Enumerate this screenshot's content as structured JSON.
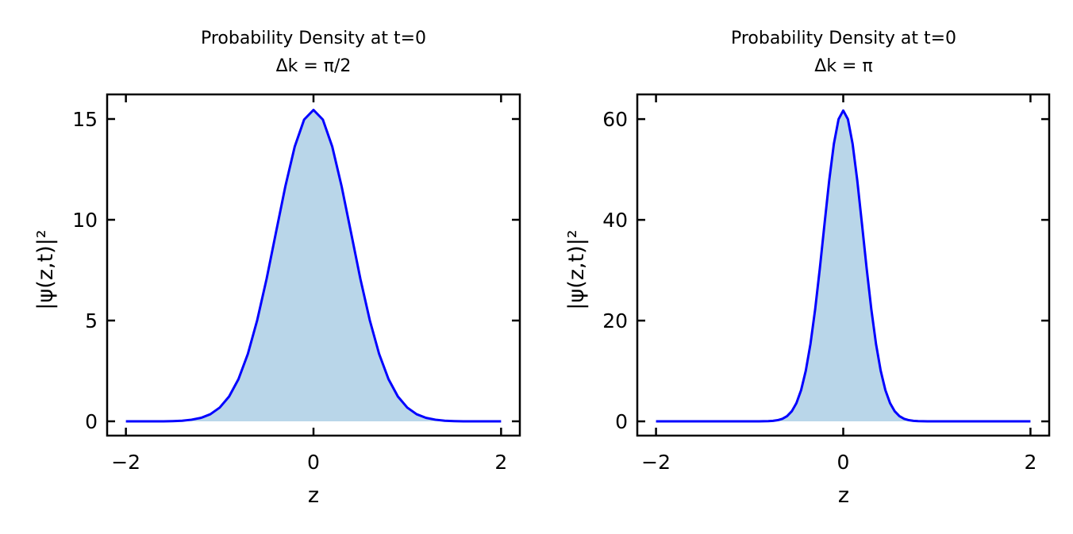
{
  "colors": {
    "line": "#0000ff",
    "fill": "#b9d6e9",
    "axis": "#000000"
  },
  "chart_data": [
    {
      "type": "area",
      "title": "Probability Density at t=0",
      "subtitle": "Δk = π/2",
      "xlabel": "z",
      "ylabel": "|ψ(z,t)|²",
      "xlim": [
        -2.2,
        2.2
      ],
      "ylim": [
        -0.71,
        16.22
      ],
      "xticks": [
        -2,
        0,
        2
      ],
      "xtick_labels": [
        "−2",
        "0",
        "2"
      ],
      "yticks": [
        0,
        5,
        10,
        15
      ],
      "ytick_labels": [
        "0",
        "5",
        "10",
        "15"
      ],
      "grid": false,
      "x": [
        -2.0,
        -1.9,
        -1.8,
        -1.7,
        -1.6,
        -1.5,
        -1.4,
        -1.3,
        -1.2,
        -1.1,
        -1.0,
        -0.9,
        -0.8,
        -0.7,
        -0.6,
        -0.5,
        -0.4,
        -0.3,
        -0.2,
        -0.1,
        0.0,
        0.1,
        0.2,
        0.3,
        0.4,
        0.5,
        0.6,
        0.7,
        0.8,
        0.9,
        1.0,
        1.1,
        1.2,
        1.3,
        1.4,
        1.5,
        1.6,
        1.7,
        1.8,
        1.9,
        2.0
      ],
      "y": [
        0,
        0,
        0,
        0,
        0,
        0.01,
        0.03,
        0.08,
        0.17,
        0.35,
        0.68,
        1.23,
        2.09,
        3.34,
        5.02,
        7.07,
        9.37,
        11.66,
        13.63,
        14.97,
        15.45,
        14.97,
        13.63,
        11.66,
        9.37,
        7.07,
        5.02,
        3.34,
        2.09,
        1.23,
        0.68,
        0.35,
        0.17,
        0.08,
        0.03,
        0.01,
        0,
        0,
        0,
        0,
        0
      ]
    },
    {
      "type": "area",
      "title": "Probability Density at t=0",
      "subtitle": "Δk = π",
      "xlabel": "z",
      "ylabel": "|ψ(z,t)|²",
      "xlim": [
        -2.2,
        2.2
      ],
      "ylim": [
        -2.83,
        64.9
      ],
      "xticks": [
        -2,
        0,
        2
      ],
      "xtick_labels": [
        "−2",
        "0",
        "2"
      ],
      "yticks": [
        0,
        20,
        40,
        60
      ],
      "ytick_labels": [
        "0",
        "20",
        "40",
        "60"
      ],
      "grid": false,
      "x": [
        -2.0,
        -1.5,
        -1.0,
        -0.95,
        -0.9,
        -0.85,
        -0.8,
        -0.75,
        -0.7,
        -0.65,
        -0.6,
        -0.55,
        -0.5,
        -0.45,
        -0.4,
        -0.35,
        -0.3,
        -0.25,
        -0.2,
        -0.15,
        -0.1,
        -0.05,
        0.0,
        0.05,
        0.1,
        0.15,
        0.2,
        0.25,
        0.3,
        0.35,
        0.4,
        0.45,
        0.5,
        0.55,
        0.6,
        0.65,
        0.7,
        0.75,
        0.8,
        0.85,
        0.9,
        0.95,
        1.0,
        1.5,
        2.0
      ],
      "y": [
        0,
        0,
        0,
        0,
        0.01,
        0.02,
        0.04,
        0.1,
        0.24,
        0.51,
        1.04,
        2.0,
        3.62,
        6.21,
        10.06,
        15.39,
        22.24,
        30.38,
        39.2,
        47.81,
        55.08,
        59.98,
        61.7,
        59.98,
        55.08,
        47.81,
        39.2,
        30.38,
        22.24,
        15.39,
        10.06,
        6.21,
        3.62,
        2.0,
        1.04,
        0.51,
        0.24,
        0.1,
        0.04,
        0.02,
        0.01,
        0,
        0,
        0,
        0
      ]
    }
  ]
}
